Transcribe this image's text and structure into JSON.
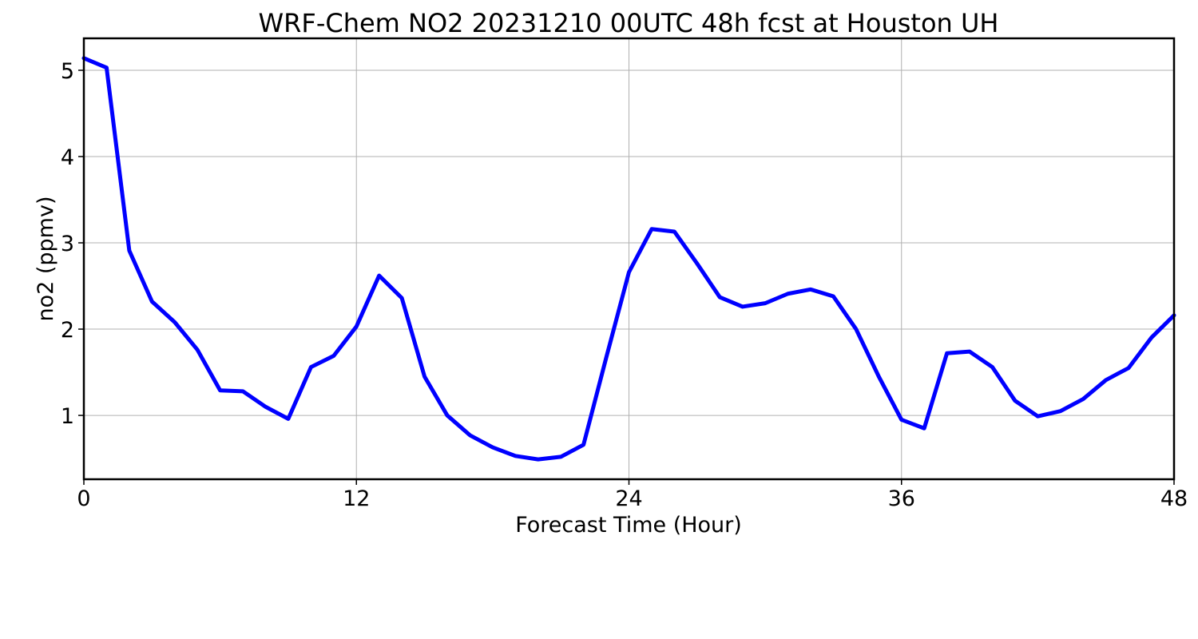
{
  "chart_data": {
    "type": "line",
    "title": "WRF-Chem NO2  20231210 00UTC 48h fcst at Houston UH",
    "xlabel": "Forecast Time (Hour)",
    "ylabel": "no2  (ppmv)",
    "xlim": [
      0,
      48
    ],
    "ylim": [
      0.26,
      5.37
    ],
    "xticks": [
      0,
      12,
      24,
      36,
      48
    ],
    "yticks": [
      1,
      2,
      3,
      4,
      5
    ],
    "grid": true,
    "line_color": "#0000ff",
    "series": [
      {
        "x": [
          0,
          1,
          2,
          3,
          4,
          5,
          6,
          7,
          8,
          9,
          10,
          11,
          12,
          13,
          14,
          15,
          16,
          17,
          18,
          19,
          20,
          21,
          22,
          23,
          24,
          25,
          26,
          27,
          28,
          29,
          30,
          31,
          32,
          33,
          34,
          35,
          36,
          37,
          38,
          39,
          40,
          41,
          42,
          43,
          44,
          45,
          46,
          47,
          48
        ],
        "values": [
          5.14,
          5.03,
          2.91,
          2.32,
          2.08,
          1.76,
          1.29,
          1.28,
          1.1,
          0.96,
          1.56,
          1.69,
          2.03,
          2.62,
          2.36,
          1.45,
          1.0,
          0.77,
          0.63,
          0.53,
          0.49,
          0.52,
          0.66,
          1.67,
          2.66,
          3.16,
          3.13,
          2.76,
          2.37,
          2.26,
          2.3,
          2.41,
          2.46,
          2.38,
          2.0,
          1.45,
          0.95,
          0.85,
          1.72,
          1.74,
          1.56,
          1.17,
          0.99,
          1.05,
          1.19,
          1.41,
          1.55,
          1.9,
          2.16
        ]
      }
    ]
  }
}
